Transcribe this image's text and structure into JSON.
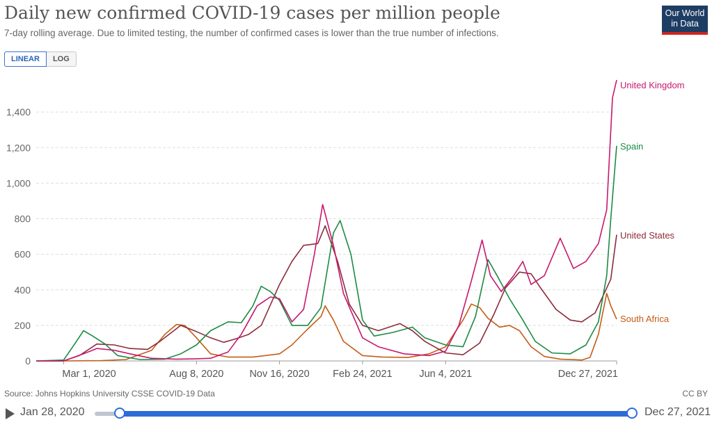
{
  "header": {
    "title": "Daily new confirmed COVID-19 cases per million people",
    "subtitle": "7-day rolling average. Due to limited testing, the number of confirmed cases is lower than the true number of infections.",
    "logo_line1": "Our World",
    "logo_line2": "in Data"
  },
  "controls": {
    "linear_label": "LINEAR",
    "log_label": "LOG"
  },
  "footer": {
    "source": "Source: Johns Hopkins University CSSE COVID-19 Data",
    "license": "CC BY"
  },
  "timeline": {
    "start_label": "Jan 28, 2020",
    "end_label": "Dec 27, 2021",
    "start_value": "2020-01-28",
    "end_value": "2021-12-27"
  },
  "colors": {
    "United Kingdom": "#c7186e",
    "Spain": "#1c8a44",
    "United States": "#8c2c3a",
    "South Africa": "#c45c15"
  },
  "chart_data": {
    "type": "line",
    "scale": "linear",
    "grid": true,
    "xrange": [
      "2020-01-28",
      "2021-12-27"
    ],
    "ylim": [
      0,
      1600
    ],
    "yticks": [
      0,
      200,
      400,
      600,
      800,
      1000,
      1200,
      1400
    ],
    "ytick_labels": [
      "0",
      "200",
      "400",
      "600",
      "800",
      "1,000",
      "1,200",
      "1,400"
    ],
    "xticks": [
      "2020-03-01",
      "2020-08-08",
      "2020-11-16",
      "2021-02-24",
      "2021-06-04",
      "2021-12-27"
    ],
    "xtick_labels": [
      "Mar 1, 2020",
      "Aug 8, 2020",
      "Nov 16, 2020",
      "Feb 24, 2021",
      "Jun 4, 2021",
      "Dec 27, 2021"
    ],
    "series": [
      {
        "name": "South Africa",
        "points": [
          [
            "2020-01-28",
            0
          ],
          [
            "2020-03-01",
            0
          ],
          [
            "2020-04-15",
            2
          ],
          [
            "2020-05-15",
            8
          ],
          [
            "2020-06-15",
            60
          ],
          [
            "2020-07-01",
            150
          ],
          [
            "2020-07-15",
            205
          ],
          [
            "2020-07-25",
            200
          ],
          [
            "2020-08-08",
            130
          ],
          [
            "2020-08-25",
            40
          ],
          [
            "2020-09-15",
            22
          ],
          [
            "2020-10-15",
            22
          ],
          [
            "2020-11-16",
            40
          ],
          [
            "2020-12-01",
            90
          ],
          [
            "2020-12-20",
            180
          ],
          [
            "2021-01-05",
            250
          ],
          [
            "2021-01-10",
            310
          ],
          [
            "2021-01-20",
            230
          ],
          [
            "2021-02-01",
            110
          ],
          [
            "2021-02-24",
            30
          ],
          [
            "2021-03-20",
            22
          ],
          [
            "2021-04-20",
            20
          ],
          [
            "2021-05-15",
            40
          ],
          [
            "2021-06-04",
            80
          ],
          [
            "2021-06-25",
            230
          ],
          [
            "2021-07-05",
            320
          ],
          [
            "2021-07-15",
            300
          ],
          [
            "2021-07-25",
            240
          ],
          [
            "2021-08-08",
            190
          ],
          [
            "2021-08-20",
            200
          ],
          [
            "2021-09-01",
            170
          ],
          [
            "2021-09-15",
            80
          ],
          [
            "2021-10-01",
            25
          ],
          [
            "2021-10-20",
            10
          ],
          [
            "2021-11-15",
            5
          ],
          [
            "2021-11-25",
            20
          ],
          [
            "2021-12-05",
            150
          ],
          [
            "2021-12-15",
            380
          ],
          [
            "2021-12-20",
            310
          ],
          [
            "2021-12-27",
            235
          ]
        ]
      },
      {
        "name": "United States",
        "points": [
          [
            "2020-01-28",
            0
          ],
          [
            "2020-03-01",
            0
          ],
          [
            "2020-03-20",
            30
          ],
          [
            "2020-04-10",
            95
          ],
          [
            "2020-05-01",
            90
          ],
          [
            "2020-05-20",
            70
          ],
          [
            "2020-06-10",
            65
          ],
          [
            "2020-06-25",
            110
          ],
          [
            "2020-07-20",
            200
          ],
          [
            "2020-08-08",
            165
          ],
          [
            "2020-08-25",
            130
          ],
          [
            "2020-09-10",
            105
          ],
          [
            "2020-09-25",
            125
          ],
          [
            "2020-10-10",
            150
          ],
          [
            "2020-10-25",
            200
          ],
          [
            "2020-11-16",
            430
          ],
          [
            "2020-12-01",
            560
          ],
          [
            "2020-12-15",
            650
          ],
          [
            "2021-01-01",
            660
          ],
          [
            "2021-01-10",
            760
          ],
          [
            "2021-01-25",
            560
          ],
          [
            "2021-02-08",
            320
          ],
          [
            "2021-02-24",
            200
          ],
          [
            "2021-03-15",
            170
          ],
          [
            "2021-04-10",
            210
          ],
          [
            "2021-04-25",
            170
          ],
          [
            "2021-05-10",
            110
          ],
          [
            "2021-06-04",
            45
          ],
          [
            "2021-06-25",
            35
          ],
          [
            "2021-07-15",
            100
          ],
          [
            "2021-08-01",
            260
          ],
          [
            "2021-08-15",
            410
          ],
          [
            "2021-09-01",
            500
          ],
          [
            "2021-09-15",
            490
          ],
          [
            "2021-09-25",
            420
          ],
          [
            "2021-10-15",
            290
          ],
          [
            "2021-11-01",
            230
          ],
          [
            "2021-11-15",
            220
          ],
          [
            "2021-12-01",
            270
          ],
          [
            "2021-12-10",
            360
          ],
          [
            "2021-12-20",
            460
          ],
          [
            "2021-12-27",
            710
          ]
        ]
      },
      {
        "name": "Spain",
        "points": [
          [
            "2020-01-28",
            0
          ],
          [
            "2020-03-01",
            5
          ],
          [
            "2020-03-15",
            100
          ],
          [
            "2020-03-25",
            170
          ],
          [
            "2020-04-05",
            140
          ],
          [
            "2020-04-20",
            95
          ],
          [
            "2020-05-05",
            30
          ],
          [
            "2020-06-01",
            8
          ],
          [
            "2020-07-01",
            10
          ],
          [
            "2020-07-20",
            40
          ],
          [
            "2020-08-08",
            90
          ],
          [
            "2020-08-25",
            170
          ],
          [
            "2020-09-15",
            220
          ],
          [
            "2020-10-01",
            215
          ],
          [
            "2020-10-15",
            310
          ],
          [
            "2020-10-25",
            420
          ],
          [
            "2020-11-05",
            390
          ],
          [
            "2020-11-16",
            340
          ],
          [
            "2020-12-01",
            200
          ],
          [
            "2020-12-20",
            200
          ],
          [
            "2021-01-05",
            300
          ],
          [
            "2021-01-20",
            720
          ],
          [
            "2021-01-28",
            790
          ],
          [
            "2021-02-10",
            600
          ],
          [
            "2021-02-24",
            230
          ],
          [
            "2021-03-10",
            140
          ],
          [
            "2021-04-01",
            160
          ],
          [
            "2021-04-25",
            190
          ],
          [
            "2021-05-10",
            130
          ],
          [
            "2021-06-04",
            90
          ],
          [
            "2021-06-25",
            80
          ],
          [
            "2021-07-10",
            250
          ],
          [
            "2021-07-25",
            570
          ],
          [
            "2021-08-05",
            480
          ],
          [
            "2021-08-20",
            350
          ],
          [
            "2021-09-05",
            230
          ],
          [
            "2021-09-20",
            110
          ],
          [
            "2021-10-10",
            45
          ],
          [
            "2021-11-01",
            40
          ],
          [
            "2021-11-20",
            90
          ],
          [
            "2021-12-05",
            220
          ],
          [
            "2021-12-15",
            480
          ],
          [
            "2021-12-20",
            800
          ],
          [
            "2021-12-27",
            1210
          ]
        ]
      },
      {
        "name": "United Kingdom",
        "points": [
          [
            "2020-01-28",
            0
          ],
          [
            "2020-03-01",
            0
          ],
          [
            "2020-03-25",
            40
          ],
          [
            "2020-04-10",
            70
          ],
          [
            "2020-05-01",
            60
          ],
          [
            "2020-05-20",
            40
          ],
          [
            "2020-06-15",
            15
          ],
          [
            "2020-07-15",
            10
          ],
          [
            "2020-08-08",
            12
          ],
          [
            "2020-08-25",
            15
          ],
          [
            "2020-09-15",
            50
          ],
          [
            "2020-10-01",
            150
          ],
          [
            "2020-10-20",
            310
          ],
          [
            "2020-11-05",
            360
          ],
          [
            "2020-11-16",
            350
          ],
          [
            "2020-12-01",
            220
          ],
          [
            "2020-12-15",
            290
          ],
          [
            "2020-12-28",
            600
          ],
          [
            "2021-01-07",
            880
          ],
          [
            "2021-01-20",
            650
          ],
          [
            "2021-02-01",
            380
          ],
          [
            "2021-02-24",
            130
          ],
          [
            "2021-03-15",
            80
          ],
          [
            "2021-04-15",
            40
          ],
          [
            "2021-05-15",
            30
          ],
          [
            "2021-06-04",
            55
          ],
          [
            "2021-06-20",
            200
          ],
          [
            "2021-07-05",
            450
          ],
          [
            "2021-07-18",
            680
          ],
          [
            "2021-07-28",
            480
          ],
          [
            "2021-08-10",
            390
          ],
          [
            "2021-08-25",
            480
          ],
          [
            "2021-09-05",
            560
          ],
          [
            "2021-09-15",
            430
          ],
          [
            "2021-10-01",
            480
          ],
          [
            "2021-10-20",
            690
          ],
          [
            "2021-11-05",
            520
          ],
          [
            "2021-11-20",
            560
          ],
          [
            "2021-12-05",
            660
          ],
          [
            "2021-12-15",
            850
          ],
          [
            "2021-12-22",
            1480
          ],
          [
            "2021-12-27",
            1580
          ]
        ]
      }
    ]
  }
}
